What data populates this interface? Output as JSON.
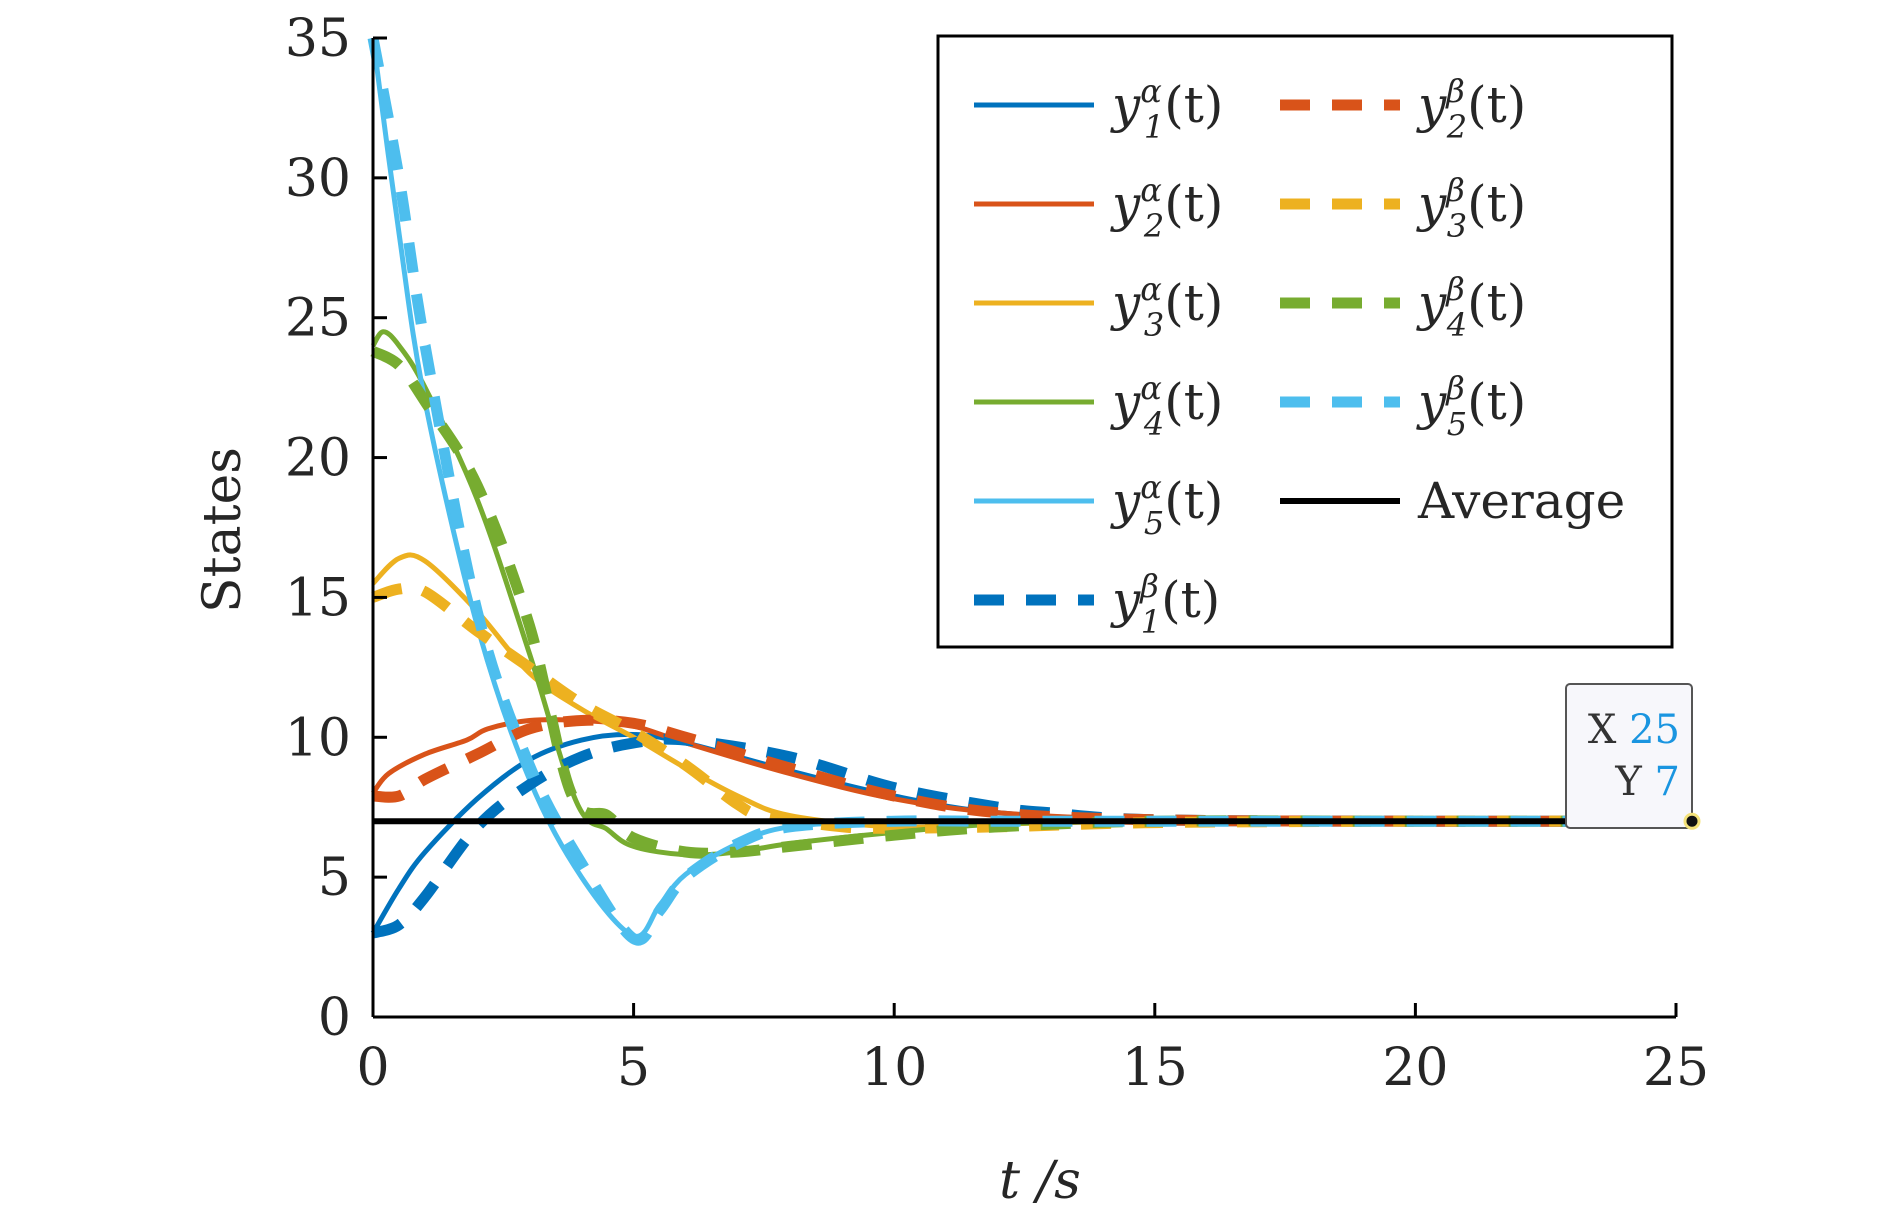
{
  "chart_data": {
    "type": "line",
    "xlabel": "t /s",
    "ylabel": "States",
    "xlim": [
      0,
      25
    ],
    "ylim": [
      0,
      35
    ],
    "xticks": [
      0,
      5,
      10,
      15,
      20,
      25
    ],
    "yticks": [
      0,
      5,
      10,
      15,
      20,
      25,
      30,
      35
    ],
    "grid": false,
    "legend_position": "top-right",
    "series": [
      {
        "key": "y1a",
        "name": "y_1^α(t)",
        "color": "#0072BD",
        "style": "solid",
        "x": [
          0,
          0.5,
          1,
          2,
          3,
          4,
          5,
          6,
          8,
          10,
          12,
          15,
          20,
          25
        ],
        "y": [
          3.0,
          4.6,
          5.9,
          7.8,
          9.2,
          9.9,
          10.1,
          9.8,
          8.8,
          7.9,
          7.3,
          7.05,
          7.0,
          7.0
        ]
      },
      {
        "key": "y2a",
        "name": "y_2^α(t)",
        "color": "#D95319",
        "style": "solid",
        "x": [
          0,
          0.3,
          1,
          1.8,
          2.2,
          3,
          4,
          5,
          6,
          8,
          10,
          12,
          15,
          20,
          25
        ],
        "y": [
          8.0,
          8.7,
          9.4,
          9.9,
          10.3,
          10.6,
          10.6,
          10.4,
          9.8,
          8.7,
          7.8,
          7.3,
          7.05,
          7.0,
          7.0
        ]
      },
      {
        "key": "y3a",
        "name": "y_3^α(t)",
        "color": "#EDB120",
        "style": "solid",
        "x": [
          0,
          0.5,
          1,
          2,
          3,
          4,
          5,
          6,
          7,
          8,
          10,
          12,
          15,
          20,
          25
        ],
        "y": [
          15.5,
          16.4,
          16.3,
          14.5,
          12.3,
          11.0,
          10.0,
          8.9,
          7.9,
          7.2,
          6.8,
          6.9,
          7.0,
          7.0,
          7.0
        ]
      },
      {
        "key": "y4a",
        "name": "y_4^α(t)",
        "color": "#77AC30",
        "style": "solid",
        "x": [
          0,
          0.2,
          0.5,
          1,
          2,
          3,
          3.9,
          4.5,
          5,
          6,
          7,
          8,
          10,
          12,
          15,
          20,
          25
        ],
        "y": [
          24.0,
          24.5,
          24.0,
          22.5,
          18.5,
          13.0,
          7.7,
          6.7,
          6.1,
          5.8,
          5.9,
          6.2,
          6.6,
          6.9,
          7.0,
          7.0,
          7.0
        ]
      },
      {
        "key": "y5a",
        "name": "y_5^α(t)",
        "color": "#4DBEEE",
        "style": "solid",
        "x": [
          0,
          0.5,
          1,
          2,
          3,
          4,
          5,
          5.5,
          6,
          7,
          8,
          10,
          12,
          15,
          20,
          25
        ],
        "y": [
          35.0,
          28.0,
          22.0,
          14.0,
          8.5,
          5.0,
          2.9,
          4.0,
          5.1,
          6.2,
          6.8,
          7.0,
          7.0,
          7.0,
          7.0,
          7.0
        ]
      },
      {
        "key": "y1b",
        "name": "y_1^β(t)",
        "color": "#0072BD",
        "style": "dashed",
        "x": [
          0,
          0.5,
          1,
          2,
          3,
          4,
          5,
          6,
          8,
          10,
          12,
          13,
          15,
          20,
          25
        ],
        "y": [
          3.0,
          3.3,
          4.3,
          6.8,
          8.3,
          9.3,
          9.8,
          9.9,
          9.3,
          8.2,
          7.5,
          7.3,
          7.05,
          7.0,
          7.0
        ]
      },
      {
        "key": "y2b",
        "name": "y_2^β(t)",
        "color": "#D95319",
        "style": "dashed",
        "x": [
          0,
          0.5,
          1,
          2,
          3,
          4,
          5,
          6,
          8,
          10,
          12,
          15,
          20,
          25
        ],
        "y": [
          7.9,
          7.9,
          8.5,
          9.4,
          10.3,
          10.6,
          10.5,
          10.0,
          8.9,
          7.9,
          7.3,
          7.05,
          7.0,
          7.0
        ]
      },
      {
        "key": "y3b",
        "name": "y_3^β(t)",
        "color": "#EDB120",
        "style": "dashed",
        "x": [
          0,
          0.5,
          1,
          2,
          3,
          4,
          5,
          6,
          7,
          7.5,
          9,
          10,
          12,
          15,
          20,
          25
        ],
        "y": [
          15.0,
          15.3,
          15.2,
          13.8,
          12.5,
          11.2,
          10.2,
          9.0,
          7.6,
          7.2,
          6.8,
          6.75,
          6.8,
          6.95,
          7.0,
          7.0
        ]
      },
      {
        "key": "y4b",
        "name": "y_4^β(t)",
        "color": "#77AC30",
        "style": "dashed",
        "x": [
          0,
          0.5,
          1,
          2,
          3,
          3.8,
          4.5,
          5,
          6,
          7,
          8,
          10,
          12,
          15,
          20,
          25
        ],
        "y": [
          23.8,
          23.3,
          22.0,
          19.0,
          14.0,
          8.0,
          7.2,
          6.4,
          5.9,
          5.9,
          6.1,
          6.5,
          6.8,
          7.0,
          7.0,
          7.0
        ]
      },
      {
        "key": "y5b",
        "name": "y_5^β(t)",
        "color": "#4DBEEE",
        "style": "dashed",
        "x": [
          0,
          0.5,
          1,
          2,
          3,
          4,
          5,
          5.5,
          6,
          7,
          8,
          10,
          12,
          15,
          20,
          25
        ],
        "y": [
          35.0,
          30.0,
          24.0,
          14.5,
          9.0,
          5.5,
          2.8,
          3.8,
          5.0,
          6.2,
          6.8,
          7.0,
          7.0,
          7.0,
          7.0,
          7.0
        ]
      },
      {
        "key": "avg",
        "name": "Average",
        "color": "#000000",
        "style": "solid",
        "x": [
          0,
          25
        ],
        "y": [
          7.0,
          7.0
        ]
      }
    ],
    "datatip": {
      "x_label": "X",
      "x_value": "25",
      "y_label": "Y",
      "y_value": "7",
      "x": 25,
      "y": 7
    }
  },
  "legend": {
    "items": [
      {
        "key": "y1a",
        "var": "y",
        "sup": "α",
        "sub": "1",
        "arg": "(t)"
      },
      {
        "key": "y2b",
        "var": "y",
        "sup": "β",
        "sub": "2",
        "arg": "(t)"
      },
      {
        "key": "y2a",
        "var": "y",
        "sup": "α",
        "sub": "2",
        "arg": "(t)"
      },
      {
        "key": "y3b",
        "var": "y",
        "sup": "β",
        "sub": "3",
        "arg": "(t)"
      },
      {
        "key": "y3a",
        "var": "y",
        "sup": "α",
        "sub": "3",
        "arg": "(t)"
      },
      {
        "key": "y4b",
        "var": "y",
        "sup": "β",
        "sub": "4",
        "arg": "(t)"
      },
      {
        "key": "y4a",
        "var": "y",
        "sup": "α",
        "sub": "4",
        "arg": "(t)"
      },
      {
        "key": "y5b",
        "var": "y",
        "sup": "β",
        "sub": "5",
        "arg": "(t)"
      },
      {
        "key": "y5a",
        "var": "y",
        "sup": "α",
        "sub": "5",
        "arg": "(t)"
      },
      {
        "key": "avg",
        "plain": "Average"
      },
      {
        "key": "y1b",
        "var": "y",
        "sup": "β",
        "sub": "1",
        "arg": "(t)"
      }
    ]
  }
}
